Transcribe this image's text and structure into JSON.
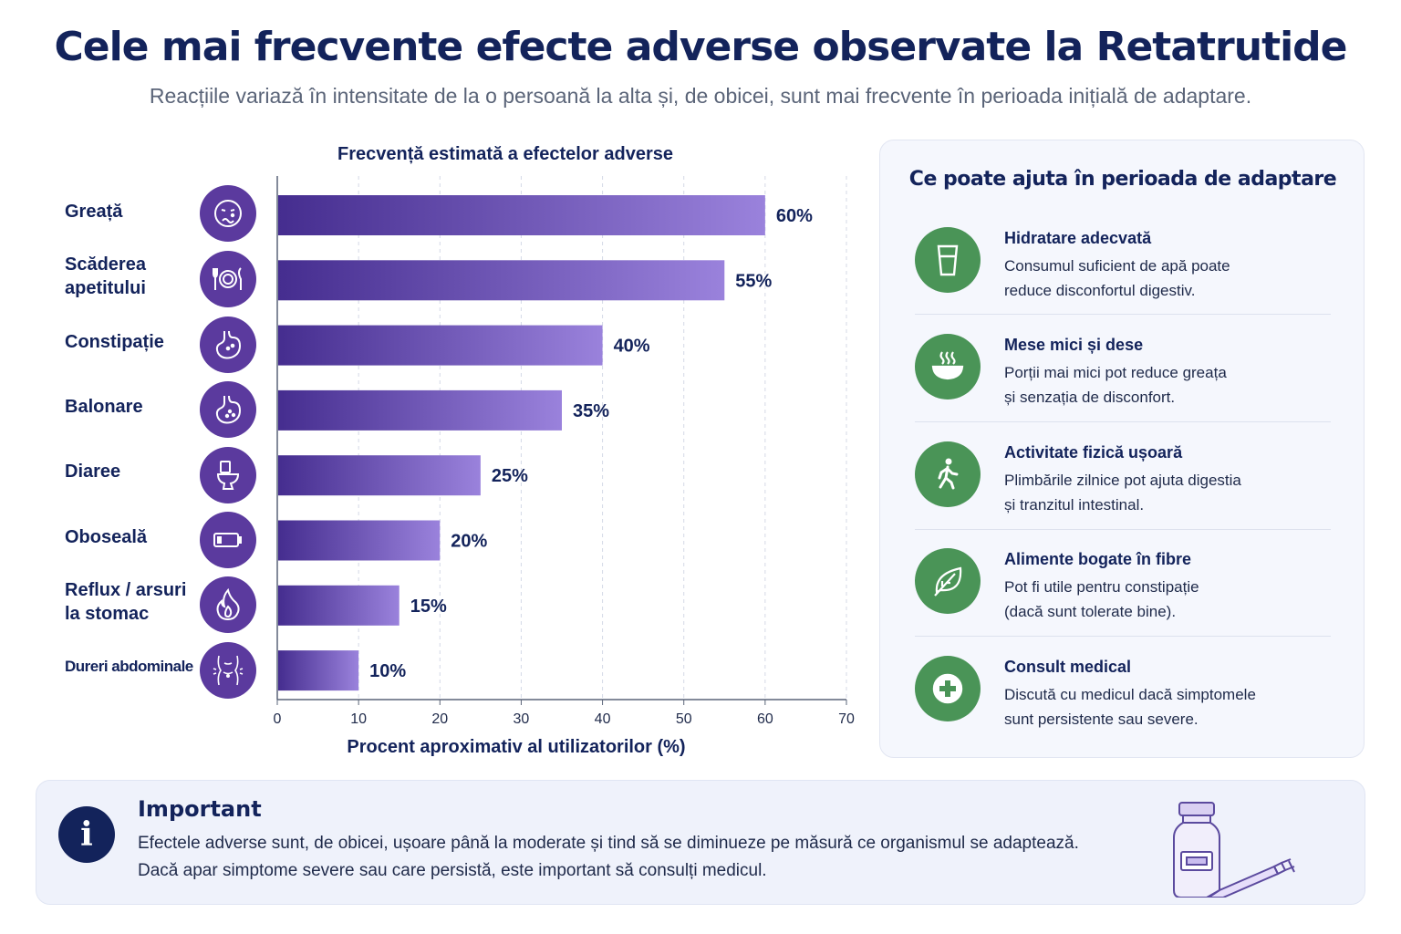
{
  "header": {
    "title": "Cele mai frecvente efecte adverse observate la Retatrutide",
    "subtitle": "Reacțiile variază în intensitate de la o persoană la alta și, de obicei, sunt mai frecvente în perioada inițială de adaptare."
  },
  "chart_data": {
    "type": "bar",
    "orientation": "horizontal",
    "title": "Frecvență estimată a efectelor adverse",
    "xlabel": "Procent aproximativ al utilizatorilor (%)",
    "ylabel": "",
    "categories": [
      "Greață",
      "Scăderea apetitului",
      "Constipație",
      "Balonare",
      "Diaree",
      "Oboseală",
      "Reflux / arsuri la stomac",
      "Dureri abdominale"
    ],
    "category_lines": [
      [
        "Greață"
      ],
      [
        "Scăderea",
        "apetitului"
      ],
      [
        "Constipație"
      ],
      [
        "Balonare"
      ],
      [
        "Diaree"
      ],
      [
        "Oboseală"
      ],
      [
        "Reflux / arsuri",
        "la stomac"
      ],
      [
        "Dureri abdominale"
      ]
    ],
    "icons": [
      "nauseous-face-icon",
      "plate-cutlery-icon",
      "stomach-icon",
      "bloated-stomach-icon",
      "toilet-icon",
      "low-battery-icon",
      "flame-icon",
      "abdomen-pain-icon"
    ],
    "values": [
      60,
      55,
      40,
      35,
      25,
      20,
      15,
      10
    ],
    "value_labels": [
      "60%",
      "55%",
      "40%",
      "35%",
      "25%",
      "20%",
      "15%",
      "10%"
    ],
    "xlim": [
      0,
      70
    ],
    "xticks": [
      0,
      10,
      20,
      30,
      40,
      50,
      60,
      70
    ],
    "grid": true,
    "bar_color_start": "#452d8f",
    "bar_color_end": "#9a82dc"
  },
  "tips": {
    "title": "Ce poate ajuta în perioada de adaptare",
    "items": [
      {
        "icon": "water-glass-icon",
        "title": "Hidratare adecvată",
        "line1": "Consumul suficient de apă poate",
        "line2": "reduce disconfortul digestiv."
      },
      {
        "icon": "steaming-bowl-icon",
        "title": "Mese mici și dese",
        "line1": "Porții mai mici pot reduce greața",
        "line2": "și senzația de disconfort."
      },
      {
        "icon": "walking-person-icon",
        "title": "Activitate fizică ușoară",
        "line1": "Plimbările zilnice pot ajuta digestia",
        "line2": "și tranzitul intestinal."
      },
      {
        "icon": "leaf-icon",
        "title": "Alimente bogate în fibre",
        "line1": "Pot fi utile pentru constipație",
        "line2": "(dacă sunt tolerate bine)."
      },
      {
        "icon": "medical-cross-icon",
        "title": "Consult medical",
        "line1": "Discută cu medicul dacă simptomele",
        "line2": "sunt persistente sau severe."
      }
    ],
    "accent": "#4a9457"
  },
  "important": {
    "icon": "info-icon",
    "title": "Important",
    "line1": "Efectele adverse sunt, de obicei, ușoare până la moderate și tind să se diminueze pe măsură ce organismul se adaptează.",
    "line2": "Dacă apar simptome severe sau care persistă, este important să consulți medicul."
  },
  "colors": {
    "navy": "#13235b",
    "purple": "#5b3a9e",
    "green": "#4a9457",
    "panel_bg": "#f5f7fd"
  }
}
